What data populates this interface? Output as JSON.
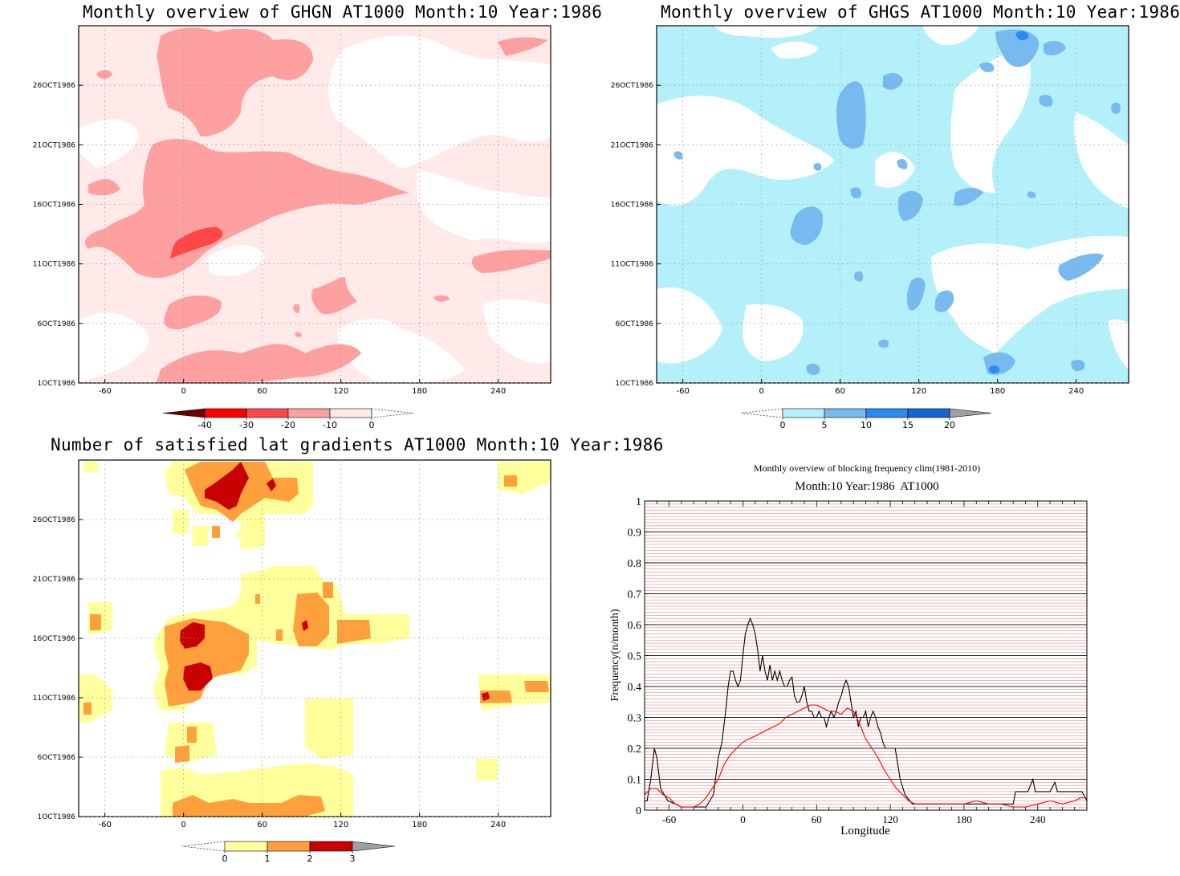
{
  "chart_data": [
    {
      "type": "heatmap",
      "title": "Monthly overview of GHGN AT1000 Month:10 Year:1986",
      "x_ticks": [
        "-60",
        "0",
        "60",
        "120",
        "180",
        "240"
      ],
      "x_tick_values": [
        -60,
        0,
        60,
        120,
        180,
        240
      ],
      "xlim": [
        -80,
        280
      ],
      "y_ticks": [
        "1OCT1986",
        "6OCT1986",
        "11OCT1986",
        "16OCT1986",
        "21OCT1986",
        "26OCT1986"
      ],
      "y_tick_values": [
        1,
        6,
        11,
        16,
        21,
        26
      ],
      "ylim": [
        1,
        31
      ],
      "colorbar": {
        "labels": [
          "-40",
          "-30",
          "-20",
          "-10",
          "0"
        ],
        "levels": [
          -40,
          -30,
          -20,
          -10,
          0
        ],
        "colors": [
          "#6b0000",
          "#ff0000",
          "#ff4747",
          "#ffa0a0",
          "#ffe9e9"
        ],
        "extend": "both"
      }
    },
    {
      "type": "heatmap",
      "title": "Monthly overview of GHGS AT1000 Month:10 Year:1986",
      "x_ticks": [
        "-60",
        "0",
        "60",
        "120",
        "180",
        "240"
      ],
      "x_tick_values": [
        -60,
        0,
        60,
        120,
        180,
        240
      ],
      "xlim": [
        -80,
        280
      ],
      "y_ticks": [
        "1OCT1986",
        "6OCT1986",
        "11OCT1986",
        "16OCT1986",
        "21OCT1986",
        "26OCT1986"
      ],
      "y_tick_values": [
        1,
        6,
        11,
        16,
        21,
        26
      ],
      "ylim": [
        1,
        31
      ],
      "colorbar": {
        "labels": [
          "0",
          "5",
          "10",
          "15",
          "20"
        ],
        "levels": [
          0,
          5,
          10,
          15,
          20
        ],
        "colors": [
          "#b4f0fa",
          "#78b9f0",
          "#288cf0",
          "#1464d2",
          "#a0a0a0"
        ],
        "extend": "both"
      }
    },
    {
      "type": "heatmap",
      "title": "Number of satisfied lat gradients AT1000 Month:10 Year:1986",
      "x_ticks": [
        "-60",
        "0",
        "60",
        "120",
        "180",
        "240"
      ],
      "x_tick_values": [
        -60,
        0,
        60,
        120,
        180,
        240
      ],
      "xlim": [
        -80,
        280
      ],
      "y_ticks": [
        "1OCT1986",
        "6OCT1986",
        "11OCT1986",
        "16OCT1986",
        "21OCT1986",
        "26OCT1986"
      ],
      "y_tick_values": [
        1,
        6,
        11,
        16,
        21,
        26
      ],
      "ylim": [
        1,
        31
      ],
      "colorbar": {
        "labels": [
          "0",
          "1",
          "2",
          "3"
        ],
        "levels": [
          0,
          1,
          2,
          3
        ],
        "colors": [
          "#ffff9c",
          "#ffa03c",
          "#c80000",
          "#a0a0a0"
        ],
        "extend": "both"
      }
    },
    {
      "type": "line",
      "title": "Monthly overview of blocking frequency clim(1981-2010)",
      "subtitle": "Month:10 Year:1986  AT1000",
      "xlabel": "Longitude",
      "ylabel": "Frequency(n/month)",
      "xlim": [
        -80,
        280
      ],
      "ylim": [
        0,
        1
      ],
      "x_ticks": [
        "-60",
        "0",
        "60",
        "120",
        "180",
        "240"
      ],
      "x_tick_values": [
        -60,
        0,
        60,
        120,
        180,
        240
      ],
      "y_ticks": [
        "0",
        "0.1",
        "0.2",
        "0.3",
        "0.4",
        "0.5",
        "0.6",
        "0.7",
        "0.8",
        "0.9",
        "1"
      ],
      "y_tick_values": [
        0,
        0.1,
        0.2,
        0.3,
        0.4,
        0.5,
        0.6,
        0.7,
        0.8,
        0.9,
        1
      ],
      "grid": true,
      "series": [
        {
          "color": "#000000",
          "x": [
            -80,
            -78,
            -75,
            -72,
            -70,
            -67,
            -64,
            -61,
            -55,
            -50,
            -40,
            -30,
            -24,
            -20,
            -17,
            -14,
            -12,
            -10,
            -8,
            -6,
            -4,
            -2,
            0,
            2,
            4,
            6,
            8,
            10,
            12,
            14,
            16,
            18,
            20,
            22,
            24,
            26,
            28,
            30,
            32,
            34,
            36,
            38,
            40,
            42,
            44,
            46,
            48,
            50,
            52,
            54,
            56,
            58,
            60,
            62,
            64,
            66,
            68,
            70,
            72,
            74,
            76,
            78,
            80,
            82,
            84,
            86,
            88,
            90,
            92,
            94,
            96,
            98,
            100,
            102,
            104,
            106,
            108,
            110,
            112,
            114,
            116,
            118,
            120,
            124,
            128,
            132,
            138,
            146,
            160,
            175,
            190,
            205,
            220,
            222,
            232,
            236,
            238,
            240,
            250,
            254,
            256,
            258,
            262,
            270,
            276,
            280
          ],
          "y": [
            0.03,
            0.03,
            0.1,
            0.2,
            0.17,
            0.07,
            0.05,
            0.03,
            0.02,
            0.01,
            0.01,
            0.01,
            0.05,
            0.17,
            0.22,
            0.32,
            0.4,
            0.45,
            0.45,
            0.42,
            0.4,
            0.42,
            0.5,
            0.57,
            0.6,
            0.62,
            0.6,
            0.57,
            0.52,
            0.45,
            0.5,
            0.45,
            0.42,
            0.47,
            0.42,
            0.45,
            0.42,
            0.45,
            0.42,
            0.4,
            0.4,
            0.42,
            0.43,
            0.37,
            0.35,
            0.35,
            0.37,
            0.4,
            0.35,
            0.32,
            0.32,
            0.3,
            0.3,
            0.32,
            0.3,
            0.3,
            0.27,
            0.3,
            0.32,
            0.3,
            0.32,
            0.35,
            0.37,
            0.4,
            0.42,
            0.4,
            0.35,
            0.3,
            0.32,
            0.27,
            0.3,
            0.3,
            0.32,
            0.27,
            0.3,
            0.32,
            0.3,
            0.27,
            0.25,
            0.22,
            0.2,
            0.2,
            0.2,
            0.2,
            0.1,
            0.05,
            0.02,
            0.02,
            0.02,
            0.02,
            0.02,
            0.02,
            0.02,
            0.06,
            0.06,
            0.1,
            0.06,
            0.06,
            0.06,
            0.09,
            0.06,
            0.06,
            0.06,
            0.06,
            0.06,
            0.03
          ]
        },
        {
          "color": "#ff0000",
          "x": [
            -80,
            -75,
            -70,
            -65,
            -60,
            -55,
            -50,
            -45,
            -40,
            -35,
            -30,
            -25,
            -20,
            -15,
            -10,
            -5,
            0,
            5,
            10,
            15,
            20,
            25,
            30,
            35,
            40,
            45,
            50,
            55,
            60,
            65,
            70,
            75,
            80,
            85,
            90,
            95,
            100,
            105,
            110,
            115,
            120,
            125,
            130,
            135,
            140,
            150,
            160,
            170,
            180,
            190,
            200,
            210,
            220,
            230,
            240,
            250,
            260,
            270,
            275,
            280
          ],
          "y": [
            0.05,
            0.07,
            0.07,
            0.05,
            0.04,
            0.02,
            0.01,
            0.01,
            0.01,
            0.02,
            0.04,
            0.07,
            0.1,
            0.15,
            0.18,
            0.2,
            0.22,
            0.23,
            0.24,
            0.25,
            0.26,
            0.27,
            0.28,
            0.3,
            0.31,
            0.32,
            0.33,
            0.34,
            0.34,
            0.33,
            0.32,
            0.32,
            0.31,
            0.33,
            0.32,
            0.28,
            0.23,
            0.2,
            0.17,
            0.13,
            0.1,
            0.07,
            0.05,
            0.03,
            0.02,
            0.02,
            0.02,
            0.02,
            0.02,
            0.03,
            0.02,
            0.02,
            0.01,
            0.01,
            0.02,
            0.03,
            0.02,
            0.03,
            0.04,
            0.04
          ]
        }
      ]
    }
  ]
}
